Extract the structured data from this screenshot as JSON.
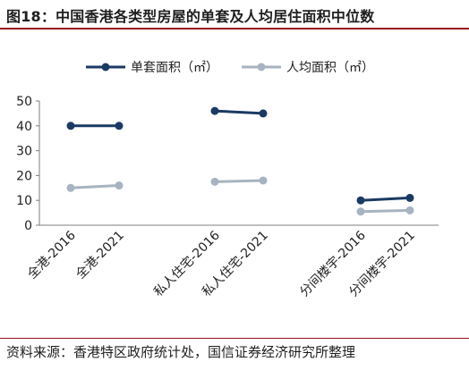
{
  "title": "图18：中国香港各类型房屋的单套及人均居住面积中位数",
  "source": "资料来源：香港特区政府统计处，国信证券经济研究所整理",
  "chart_data": {
    "type": "line",
    "categories": [
      "全港-2016",
      "全港-2021",
      "私人住宅-2016",
      "私人住宅-2021",
      "分间楼宇-2016",
      "分间楼宇-2021"
    ],
    "groups": [
      [
        0,
        1
      ],
      [
        2,
        3
      ],
      [
        4,
        5
      ]
    ],
    "series": [
      {
        "name": "单套面积（㎡）",
        "color": "#1b3a63",
        "values": [
          40,
          40,
          46,
          45,
          10,
          11
        ]
      },
      {
        "name": "人均面积（㎡）",
        "color": "#a7b3c0",
        "values": [
          15,
          16,
          17.5,
          18,
          5.5,
          6
        ]
      }
    ],
    "ylim": [
      0,
      50
    ],
    "yticks": [
      0,
      10,
      20,
      30,
      40,
      50
    ],
    "grid": false,
    "legend_position": "top"
  }
}
